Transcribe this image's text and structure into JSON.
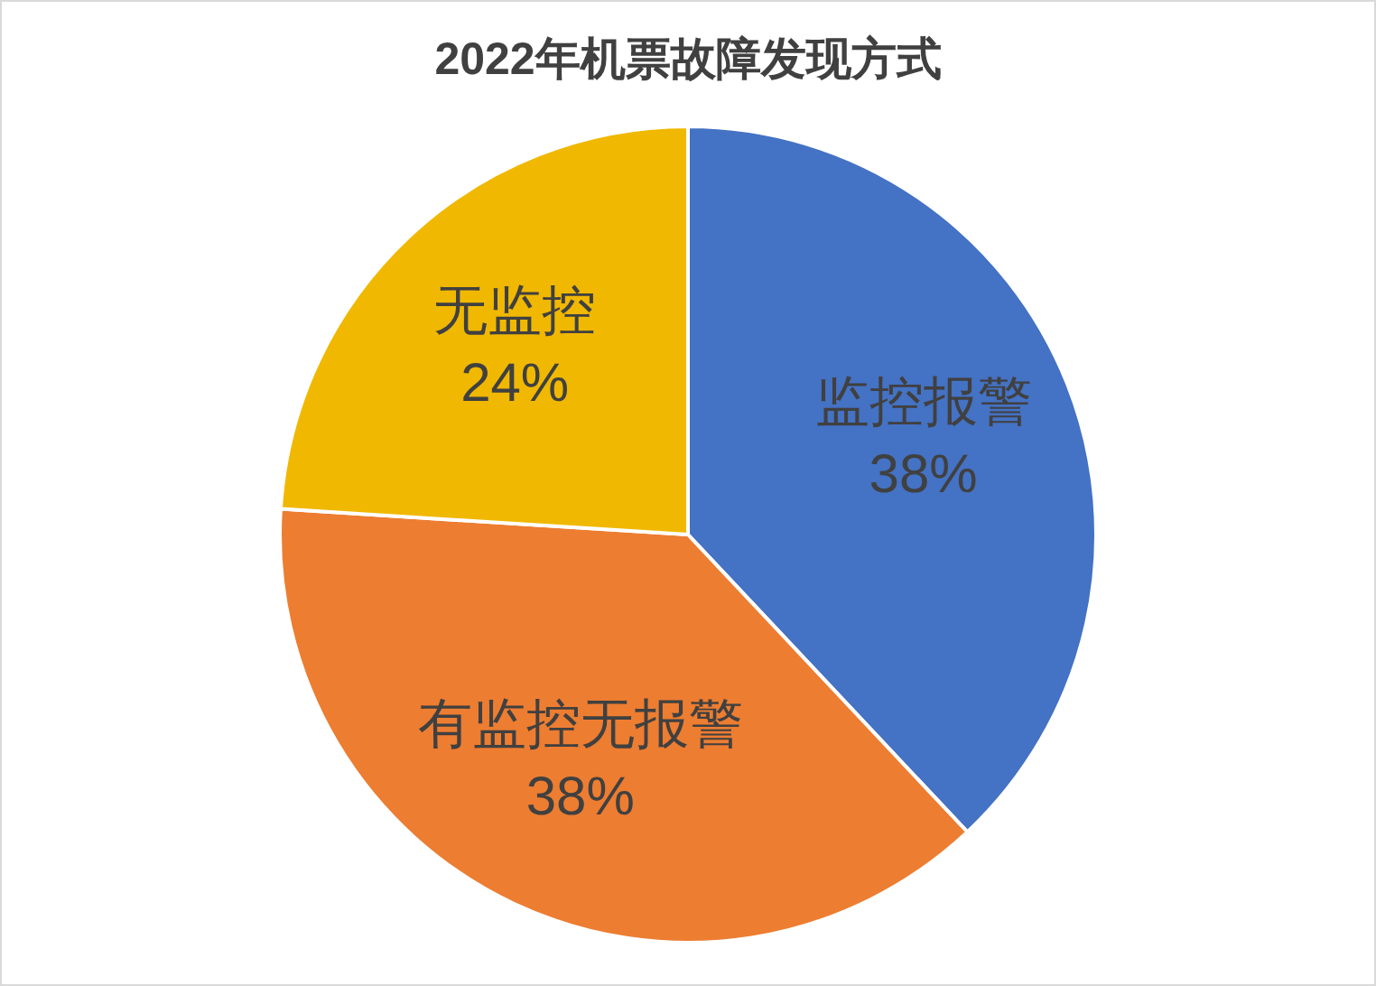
{
  "chart_data": {
    "type": "pie",
    "title": "2022年机票故障发现方式",
    "categories": [
      "监控报警",
      "有监控无报警",
      "无监控"
    ],
    "values": [
      38,
      38,
      24
    ],
    "colors": [
      "#4472c4",
      "#ed7d31",
      "#f0b800"
    ],
    "value_labels": [
      "38%",
      "38%",
      "24%"
    ],
    "legend": false
  }
}
